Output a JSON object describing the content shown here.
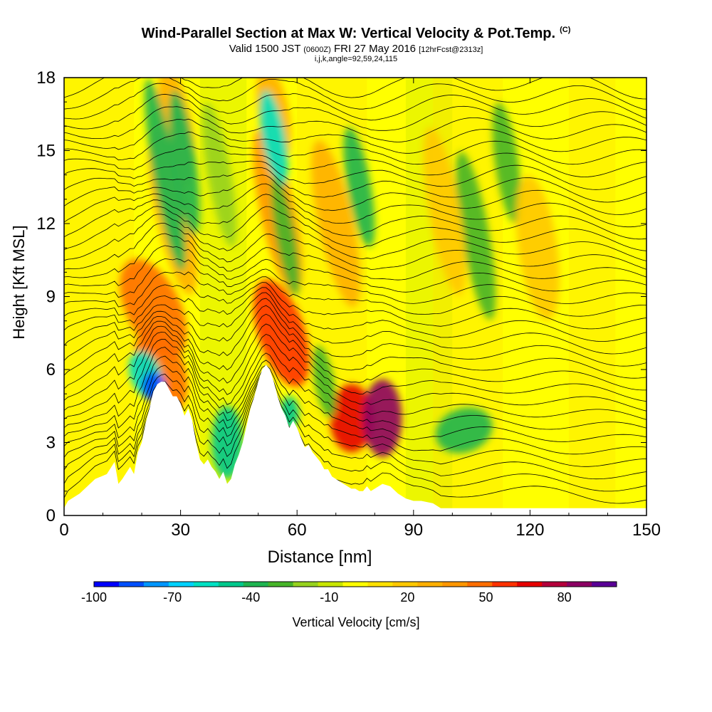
{
  "title": {
    "main": "Wind-Parallel Section at Max W: Vertical Velocity & Pot.Temp.",
    "copyright": "(C)",
    "valid_prefix": "Valid 1500 JST",
    "valid_utc": "(0600Z)",
    "valid_date": "FRI 27 May 2016",
    "forecast": "[12hrFcst@2313z]",
    "indices": "i,j,k,angle=92,59,24,115"
  },
  "chart_data": {
    "type": "heatmap",
    "title": "Wind-Parallel Section at Max W: Vertical Velocity & Pot.Temp.",
    "xlabel": "Distance [nm]",
    "ylabel": "Height [Kft MSL]",
    "xlim": [
      0,
      150
    ],
    "ylim": [
      0,
      18
    ],
    "x_ticks": [
      0,
      30,
      60,
      90,
      120,
      150
    ],
    "y_ticks": [
      0,
      3,
      6,
      9,
      12,
      15,
      18
    ],
    "x_tick_labels": [
      "0",
      "30",
      "60",
      "90",
      "120",
      "150"
    ],
    "y_tick_labels": [
      "0",
      "3",
      "6",
      "9",
      "12",
      "15",
      "18"
    ],
    "colorbar": {
      "label": "Vertical Velocity [cm/s]",
      "range": [
        -100,
        100
      ],
      "tick_values": [
        -100,
        -70,
        -40,
        -10,
        20,
        50,
        80
      ],
      "tick_labels": [
        "-100",
        "-70",
        "-40",
        "-10",
        "20",
        "50",
        "80"
      ],
      "colors": [
        "#0000ff",
        "#0050ff",
        "#0096ff",
        "#00d2ff",
        "#00e1c3",
        "#00c88c",
        "#1eb450",
        "#46b428",
        "#96d21e",
        "#c8e600",
        "#ffff00",
        "#ffe100",
        "#ffc800",
        "#ffaf00",
        "#ff9600",
        "#ff6e00",
        "#ff3200",
        "#e60000",
        "#b4003c",
        "#8c0064",
        "#5a0096"
      ]
    },
    "terrain": [
      [
        0,
        0.3
      ],
      [
        1,
        0.6
      ],
      [
        4,
        0.9
      ],
      [
        8,
        1.5
      ],
      [
        11,
        1.7
      ],
      [
        13,
        2.2
      ],
      [
        14,
        1.3
      ],
      [
        15,
        1.5
      ],
      [
        17,
        2.0
      ],
      [
        18,
        1.7
      ],
      [
        19,
        2.6
      ],
      [
        20,
        3.0
      ],
      [
        21,
        3.8
      ],
      [
        22,
        4.4
      ],
      [
        23,
        5.1
      ],
      [
        24,
        5.4
      ],
      [
        25,
        5.5
      ],
      [
        26,
        5.5
      ],
      [
        27,
        5.2
      ],
      [
        28,
        4.9
      ],
      [
        29,
        4.9
      ],
      [
        30,
        4.6
      ],
      [
        31,
        4.1
      ],
      [
        32,
        4.4
      ],
      [
        33,
        3.9
      ],
      [
        34,
        3.0
      ],
      [
        35,
        2.3
      ],
      [
        36,
        2.1
      ],
      [
        37,
        2.3
      ],
      [
        38,
        2.0
      ],
      [
        39,
        1.8
      ],
      [
        40,
        1.5
      ],
      [
        41,
        1.8
      ],
      [
        42,
        1.3
      ],
      [
        43,
        1.5
      ],
      [
        44,
        2.1
      ],
      [
        45,
        2.5
      ],
      [
        46,
        3.0
      ],
      [
        47,
        3.7
      ],
      [
        48,
        4.4
      ],
      [
        49,
        4.9
      ],
      [
        50,
        5.5
      ],
      [
        51,
        6.0
      ],
      [
        52,
        6.2
      ],
      [
        53,
        6.0
      ],
      [
        54,
        5.5
      ],
      [
        55,
        4.9
      ],
      [
        56,
        4.4
      ],
      [
        57,
        4.1
      ],
      [
        58,
        3.6
      ],
      [
        59,
        3.9
      ],
      [
        60,
        3.6
      ],
      [
        61,
        3.2
      ],
      [
        62,
        2.8
      ],
      [
        63,
        2.9
      ],
      [
        64,
        2.6
      ],
      [
        65,
        2.4
      ],
      [
        66,
        2.2
      ],
      [
        67,
        1.9
      ],
      [
        68,
        1.9
      ],
      [
        69,
        1.6
      ],
      [
        70,
        1.5
      ],
      [
        71,
        1.4
      ],
      [
        72,
        1.3
      ],
      [
        73,
        1.2
      ],
      [
        74,
        1.1
      ],
      [
        75,
        1.1
      ],
      [
        76,
        1.0
      ],
      [
        77,
        1.0
      ],
      [
        78,
        1.2
      ],
      [
        79,
        1.0
      ],
      [
        80,
        1.1
      ],
      [
        82,
        1.3
      ],
      [
        84,
        1.2
      ],
      [
        86,
        0.9
      ],
      [
        88,
        0.7
      ],
      [
        90,
        0.6
      ],
      [
        92,
        0.6
      ],
      [
        95,
        0.5
      ],
      [
        97,
        0.3
      ],
      [
        150,
        0.3
      ]
    ],
    "velocity_cells": [
      {
        "x": 23,
        "y": 8.5,
        "w": 45,
        "rx": 1.4,
        "ry": 2.2,
        "rot": -25
      },
      {
        "x": 25,
        "y": 6.0,
        "w": 45,
        "rx": 1.2,
        "ry": 1.8,
        "rot": -20
      },
      {
        "x": 28,
        "y": 12.5,
        "w": 30,
        "rx": 0.9,
        "ry": 3.5,
        "rot": -12
      },
      {
        "x": 29,
        "y": 16.0,
        "w": 25,
        "rx": 0.8,
        "ry": 2.5,
        "rot": -10
      },
      {
        "x": 21,
        "y": 5.8,
        "w": -55,
        "rx": 0.8,
        "ry": 1.0,
        "rot": -20
      },
      {
        "x": 23,
        "y": 5.3,
        "w": -85,
        "rx": 0.6,
        "ry": 0.6,
        "rot": 0
      },
      {
        "x": 26,
        "y": 14.0,
        "w": -35,
        "rx": 0.6,
        "ry": 4.0,
        "rot": -10
      },
      {
        "x": 31,
        "y": 14.5,
        "w": -40,
        "rx": 0.6,
        "ry": 3.0,
        "rot": -8
      },
      {
        "x": 42,
        "y": 3.0,
        "w": -45,
        "rx": 0.8,
        "ry": 1.5,
        "rot": 0
      },
      {
        "x": 40,
        "y": 14.0,
        "w": -20,
        "rx": 0.6,
        "ry": 3.0,
        "rot": -10
      },
      {
        "x": 56,
        "y": 7.5,
        "w": 55,
        "rx": 1.2,
        "ry": 2.3,
        "rot": -18
      },
      {
        "x": 55,
        "y": 12.5,
        "w": 40,
        "rx": 0.9,
        "ry": 3.5,
        "rot": -12
      },
      {
        "x": 54,
        "y": 16.5,
        "w": 30,
        "rx": 0.8,
        "ry": 2.0,
        "rot": -10
      },
      {
        "x": 54,
        "y": 15.5,
        "w": -55,
        "rx": 0.6,
        "ry": 2.0,
        "rot": -10
      },
      {
        "x": 58,
        "y": 4.2,
        "w": -50,
        "rx": 0.5,
        "ry": 0.7,
        "rot": 0
      },
      {
        "x": 57,
        "y": 11.5,
        "w": -30,
        "rx": 0.5,
        "ry": 2.5,
        "rot": -10
      },
      {
        "x": 74,
        "y": 4.0,
        "w": 65,
        "rx": 1.1,
        "ry": 1.4,
        "rot": 0
      },
      {
        "x": 82,
        "y": 4.0,
        "w": 85,
        "rx": 1.0,
        "ry": 1.6,
        "rot": 0
      },
      {
        "x": 70,
        "y": 12.0,
        "w": 30,
        "rx": 0.9,
        "ry": 3.5,
        "rot": -12
      },
      {
        "x": 76,
        "y": 13.5,
        "w": -40,
        "rx": 0.6,
        "ry": 2.5,
        "rot": -10
      },
      {
        "x": 67,
        "y": 5.5,
        "w": -25,
        "rx": 0.5,
        "ry": 1.5,
        "rot": -10
      },
      {
        "x": 103,
        "y": 3.5,
        "w": -35,
        "rx": 1.5,
        "ry": 0.9,
        "rot": -20
      },
      {
        "x": 106,
        "y": 11.5,
        "w": -30,
        "rx": 0.7,
        "ry": 3.5,
        "rot": -10
      },
      {
        "x": 98,
        "y": 12.5,
        "w": 20,
        "rx": 0.8,
        "ry": 3.5,
        "rot": -10
      },
      {
        "x": 114,
        "y": 14.5,
        "w": -25,
        "rx": 0.6,
        "ry": 2.5,
        "rot": -8
      },
      {
        "x": 122,
        "y": 11.0,
        "w": 20,
        "rx": 1.0,
        "ry": 3.0,
        "rot": -8
      }
    ],
    "isentrope_levels": 36
  }
}
